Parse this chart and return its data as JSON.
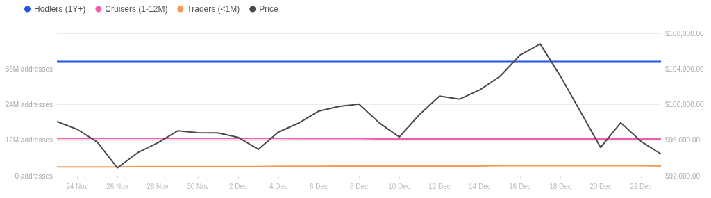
{
  "chart_data": {
    "type": "line",
    "categories": [
      null,
      "24 Nov",
      null,
      "26 Nov",
      null,
      "28 Nov",
      null,
      "30 Nov",
      null,
      "2 Dec",
      null,
      "4 Dec",
      null,
      "6 Dec",
      null,
      "8 Dec",
      null,
      "10 Dec",
      null,
      "12 Dec",
      null,
      "14 Dec",
      null,
      "16 Dec",
      null,
      "18 Dec",
      null,
      "20 Dec",
      null,
      "22 Dec",
      null
    ],
    "series": [
      {
        "name": "Hodlers (1Y+)",
        "color": "#2255e6",
        "values": [
          38.5,
          38.5,
          38.5,
          38.5,
          38.5,
          38.5,
          38.5,
          38.5,
          38.5,
          38.5,
          38.5,
          38.5,
          38.5,
          38.5,
          38.5,
          38.5,
          38.5,
          38.5,
          38.5,
          38.5,
          38.5,
          38.5,
          38.5,
          38.5,
          38.5,
          38.5,
          38.5,
          38.5,
          38.5,
          38.5,
          38.5
        ]
      },
      {
        "name": "Cruisers (1-12M)",
        "color": "#f25fb0",
        "values": [
          12.6,
          12.6,
          12.6,
          12.6,
          12.6,
          12.6,
          12.6,
          12.6,
          12.6,
          12.6,
          12.6,
          12.6,
          12.5,
          12.5,
          12.5,
          12.5,
          12.4,
          12.4,
          12.4,
          12.4,
          12.4,
          12.4,
          12.4,
          12.4,
          12.4,
          12.4,
          12.4,
          12.4,
          12.4,
          12.4,
          12.4
        ]
      },
      {
        "name": "Traders (<1M)",
        "color": "#f79a55",
        "values": [
          3.0,
          3.0,
          3.0,
          3.0,
          3.1,
          3.1,
          3.1,
          3.1,
          3.1,
          3.1,
          3.1,
          3.2,
          3.2,
          3.2,
          3.3,
          3.3,
          3.3,
          3.3,
          3.3,
          3.3,
          3.3,
          3.3,
          3.4,
          3.4,
          3.4,
          3.4,
          3.4,
          3.4,
          3.4,
          3.4,
          3.3
        ]
      },
      {
        "name": "Price",
        "color": "#4a4a4a",
        "axis": "y2",
        "values": [
          98090,
          97230,
          95800,
          92880,
          94580,
          95700,
          97050,
          96840,
          96820,
          96320,
          94970,
          96920,
          97910,
          99260,
          99780,
          100050,
          97960,
          96350,
          98870,
          100950,
          100610,
          101650,
          103160,
          105560,
          106800,
          103210,
          99200,
          95180,
          97960,
          95880,
          94440
        ]
      }
    ],
    "ylim": [
      0,
      48
    ],
    "yticks": [
      {
        "value": 0,
        "label": "0 addresses"
      },
      {
        "value": 12,
        "label": "12M addresses"
      },
      {
        "value": 24,
        "label": "24M addresses"
      },
      {
        "value": 36,
        "label": "36M addresses"
      },
      {
        "value": 48,
        "label": null
      }
    ],
    "y2lim": [
      92000,
      108000
    ],
    "y2ticks": [
      {
        "value": 92000,
        "label": "$92,000.00"
      },
      {
        "value": 96000,
        "label": "$96,000.00"
      },
      {
        "value": 100000,
        "label": "$100,000.00"
      },
      {
        "value": 104000,
        "label": "$104,000.00"
      },
      {
        "value": 108000,
        "label": "$108,000.00"
      }
    ],
    "grid": "y",
    "legend": "top left",
    "marker": "none",
    "line_style": "solid"
  }
}
